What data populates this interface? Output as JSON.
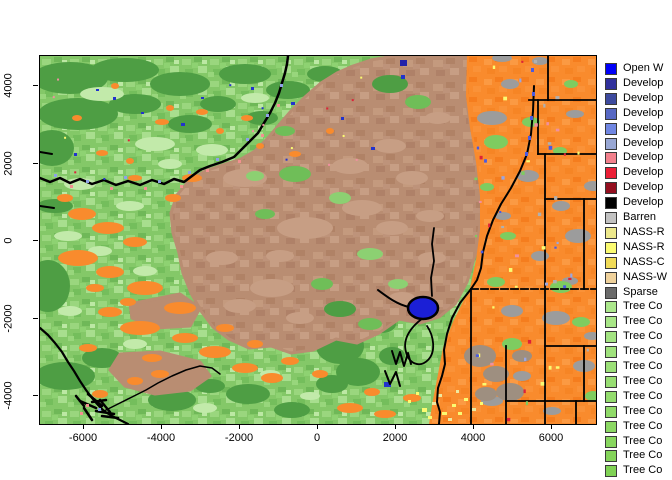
{
  "figure": {
    "kind": "raster-landcover-map-plot",
    "background": "#ffffff"
  },
  "axes": {
    "x_tick_values": [
      -6000,
      -4000,
      -2000,
      0,
      2000,
      4000,
      6000
    ],
    "y_tick_values": [
      -4000,
      -2000,
      0,
      2000,
      4000
    ]
  },
  "legend": {
    "items": [
      {
        "label": "Open W",
        "color": "#0000F8"
      },
      {
        "label": "Develop",
        "color": "#31319C"
      },
      {
        "label": "Develop",
        "color": "#3D4A9E"
      },
      {
        "label": "Develop",
        "color": "#5768C4"
      },
      {
        "label": "Develop",
        "color": "#7086E2"
      },
      {
        "label": "Develop",
        "color": "#98A7D4"
      },
      {
        "label": "Develop",
        "color": "#F2808C"
      },
      {
        "label": "Develop",
        "color": "#EB1F36"
      },
      {
        "label": "Develop",
        "color": "#940F1F"
      },
      {
        "label": "Develop",
        "color": "#000000"
      },
      {
        "label": "Barren",
        "color": "#C2C2C2"
      },
      {
        "label": "NASS-R",
        "color": "#EDE88C"
      },
      {
        "label": "NASS-R",
        "color": "#FBFB71"
      },
      {
        "label": "NASS-C",
        "color": "#F1DB58"
      },
      {
        "label": "NASS-W",
        "color": "#F0D29C"
      },
      {
        "label": "Sparse",
        "color": "#6B6B6B"
      },
      {
        "label": "Tree Co",
        "color": "#ACE88C"
      },
      {
        "label": "Tree Co",
        "color": "#A8E687"
      },
      {
        "label": "Tree Co",
        "color": "#A4E482"
      },
      {
        "label": "Tree Co",
        "color": "#A0E27D"
      },
      {
        "label": "Tree Co",
        "color": "#9CE078"
      },
      {
        "label": "Tree Co",
        "color": "#98DE73"
      },
      {
        "label": "Tree Co",
        "color": "#94DC6E"
      },
      {
        "label": "Tree Co",
        "color": "#90DA69"
      },
      {
        "label": "Tree Co",
        "color": "#8CD864"
      },
      {
        "label": "Tree Co",
        "color": "#88D65F"
      },
      {
        "label": "Tree Co",
        "color": "#84D45A"
      },
      {
        "label": "Tree Co",
        "color": "#80D255"
      }
    ]
  },
  "map_colors": {
    "water_blue": "#1B1FD6",
    "forest_green_dark": "#4E9E44",
    "forest_green_base": "#84C868",
    "forest_green_pale": "#C2EAAA",
    "shrub_brown": "#B98D72",
    "herb_orange": "#F98B2D",
    "barren_grey": "#9C9C9C",
    "crop_yellow": "#FBFB71",
    "line_black": "#000000"
  }
}
